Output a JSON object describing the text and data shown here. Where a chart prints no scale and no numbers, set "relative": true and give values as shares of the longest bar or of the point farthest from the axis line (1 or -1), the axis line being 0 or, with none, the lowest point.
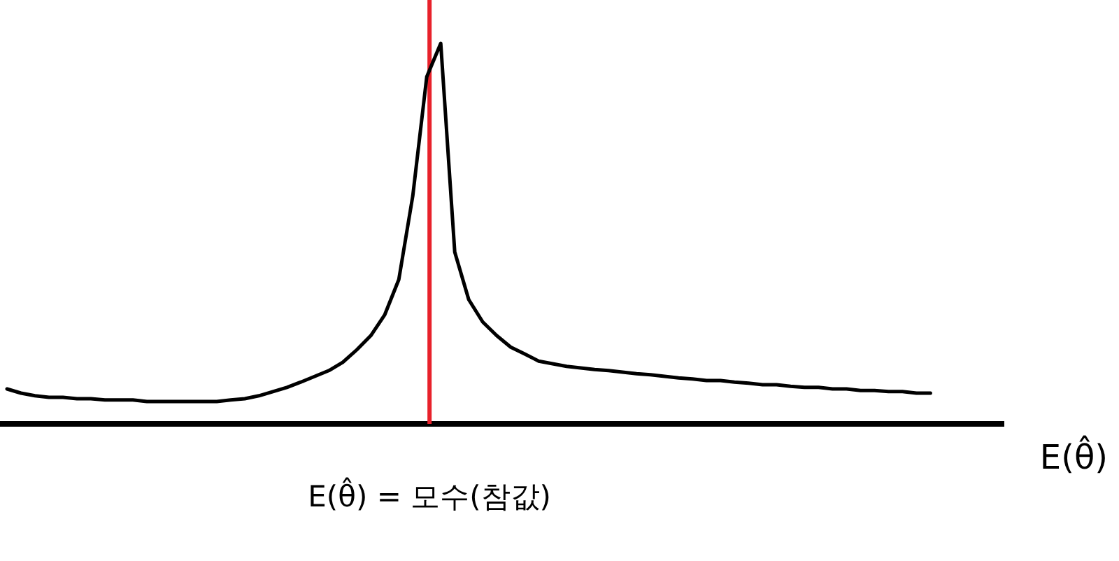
{
  "chart_data": {
    "type": "line",
    "relative": true,
    "xlabel": "E(θ̂)",
    "annotations": [
      "E(θ̂) = 모수(참값)"
    ],
    "categories": [
      null,
      null,
      null,
      null,
      null,
      null,
      null,
      null,
      null,
      null,
      null,
      null,
      null,
      null,
      null,
      null,
      null,
      null,
      null,
      null,
      null,
      null,
      null,
      null,
      null,
      null,
      null,
      null,
      null,
      null,
      null,
      null,
      null,
      null,
      null,
      null,
      null,
      null,
      null,
      null,
      null,
      null,
      null,
      null,
      null,
      null,
      null,
      null,
      null,
      null,
      null,
      null,
      null,
      null,
      null,
      null,
      null,
      null,
      null,
      null,
      null,
      null,
      null,
      null,
      null,
      null,
      null
    ],
    "series": [
      {
        "color": "#000000",
        "values": [
          0.092,
          0.081,
          0.074,
          0.07,
          0.07,
          0.066,
          0.066,
          0.063,
          0.063,
          0.063,
          0.059,
          0.059,
          0.059,
          0.059,
          0.059,
          0.059,
          0.063,
          0.066,
          0.074,
          0.085,
          0.096,
          0.11,
          0.125,
          0.14,
          0.162,
          0.195,
          0.232,
          0.287,
          0.379,
          0.599,
          0.912,
          1,
          0.452,
          0.327,
          0.268,
          0.232,
          0.202,
          0.184,
          0.165,
          0.158,
          0.151,
          0.147,
          0.143,
          0.14,
          0.136,
          0.132,
          0.129,
          0.125,
          0.121,
          0.118,
          0.114,
          0.114,
          0.11,
          0.107,
          0.103,
          0.103,
          0.099,
          0.096,
          0.096,
          0.092,
          0.092,
          0.088,
          0.088,
          0.085,
          0.085,
          0.081,
          0.081
        ]
      }
    ]
  }
}
